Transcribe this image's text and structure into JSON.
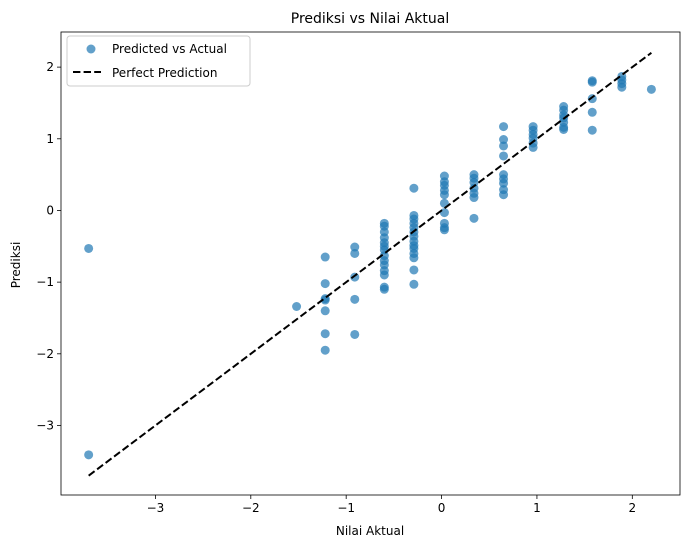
{
  "chart_data": {
    "type": "scatter",
    "title": "Prediksi vs Nilai Aktual",
    "xlabel": "Nilai Aktual",
    "ylabel": "Prediksi",
    "xlim": [
      -3.99,
      2.5
    ],
    "ylim": [
      -3.97,
      2.49
    ],
    "xticks": [
      -3,
      -2,
      -1,
      0,
      1,
      2
    ],
    "yticks": [
      -3,
      -2,
      -1,
      0,
      1,
      2
    ],
    "xtick_labels": [
      "−3",
      "−2",
      "−1",
      "0",
      "1",
      "2"
    ],
    "ytick_labels": [
      "−3",
      "−2",
      "−1",
      "0",
      "1",
      "2"
    ],
    "grid": false,
    "legend_position": "top-left",
    "colors": {
      "points": "#1f77b4",
      "line": "#000000"
    },
    "series": [
      {
        "name": "Predicted vs Actual",
        "kind": "scatter",
        "points": [
          [
            -3.7,
            -0.53
          ],
          [
            -3.7,
            -3.41
          ],
          [
            -1.52,
            -1.34
          ],
          [
            -1.22,
            -0.65
          ],
          [
            -1.22,
            -1.02
          ],
          [
            -1.22,
            -1.23
          ],
          [
            -1.22,
            -1.25
          ],
          [
            -1.22,
            -1.4
          ],
          [
            -1.22,
            -1.72
          ],
          [
            -1.22,
            -1.95
          ],
          [
            -0.91,
            -0.51
          ],
          [
            -0.91,
            -0.6
          ],
          [
            -0.91,
            -0.93
          ],
          [
            -0.91,
            -1.24
          ],
          [
            -0.91,
            -1.73
          ],
          [
            -0.6,
            -0.18
          ],
          [
            -0.6,
            -0.22
          ],
          [
            -0.6,
            -0.3
          ],
          [
            -0.6,
            -0.38
          ],
          [
            -0.6,
            -0.45
          ],
          [
            -0.6,
            -0.5
          ],
          [
            -0.6,
            -0.55
          ],
          [
            -0.6,
            -0.63
          ],
          [
            -0.6,
            -0.7
          ],
          [
            -0.6,
            -0.76
          ],
          [
            -0.6,
            -0.84
          ],
          [
            -0.6,
            -0.9
          ],
          [
            -0.6,
            -1.07
          ],
          [
            -0.6,
            -1.1
          ],
          [
            -0.29,
            0.31
          ],
          [
            -0.29,
            -0.07
          ],
          [
            -0.29,
            -0.12
          ],
          [
            -0.29,
            -0.18
          ],
          [
            -0.29,
            -0.24
          ],
          [
            -0.29,
            -0.3
          ],
          [
            -0.29,
            -0.36
          ],
          [
            -0.29,
            -0.43
          ],
          [
            -0.29,
            -0.49
          ],
          [
            -0.29,
            -0.53
          ],
          [
            -0.29,
            -0.6
          ],
          [
            -0.29,
            -0.66
          ],
          [
            -0.29,
            -0.83
          ],
          [
            -0.29,
            -1.03
          ],
          [
            0.03,
            0.48
          ],
          [
            0.03,
            0.4
          ],
          [
            0.03,
            0.35
          ],
          [
            0.03,
            0.28
          ],
          [
            0.03,
            0.22
          ],
          [
            0.03,
            0.1
          ],
          [
            0.03,
            -0.03
          ],
          [
            0.03,
            -0.18
          ],
          [
            0.03,
            -0.24
          ],
          [
            0.03,
            -0.27
          ],
          [
            0.34,
            0.5
          ],
          [
            0.34,
            0.45
          ],
          [
            0.34,
            0.39
          ],
          [
            0.34,
            0.31
          ],
          [
            0.34,
            0.24
          ],
          [
            0.34,
            0.18
          ],
          [
            0.34,
            -0.11
          ],
          [
            0.65,
            1.17
          ],
          [
            0.65,
            0.99
          ],
          [
            0.65,
            0.9
          ],
          [
            0.65,
            0.76
          ],
          [
            0.65,
            0.5
          ],
          [
            0.65,
            0.44
          ],
          [
            0.65,
            0.38
          ],
          [
            0.65,
            0.29
          ],
          [
            0.65,
            0.22
          ],
          [
            0.96,
            1.17
          ],
          [
            0.96,
            1.12
          ],
          [
            0.96,
            1.06
          ],
          [
            0.96,
            1.01
          ],
          [
            0.96,
            0.94
          ],
          [
            0.96,
            0.88
          ],
          [
            1.28,
            1.45
          ],
          [
            1.28,
            1.4
          ],
          [
            1.28,
            1.33
          ],
          [
            1.28,
            1.29
          ],
          [
            1.28,
            1.23
          ],
          [
            1.28,
            1.16
          ],
          [
            1.28,
            1.13
          ],
          [
            1.58,
            1.81
          ],
          [
            1.58,
            1.79
          ],
          [
            1.58,
            1.56
          ],
          [
            1.58,
            1.37
          ],
          [
            1.58,
            1.12
          ],
          [
            1.89,
            1.87
          ],
          [
            1.89,
            1.82
          ],
          [
            1.89,
            1.77
          ],
          [
            1.89,
            1.72
          ],
          [
            2.2,
            1.69
          ]
        ]
      },
      {
        "name": "Perfect Prediction",
        "kind": "line",
        "style": "dashed",
        "points": [
          [
            -3.7,
            -3.7
          ],
          [
            2.2,
            2.2
          ]
        ]
      }
    ]
  }
}
